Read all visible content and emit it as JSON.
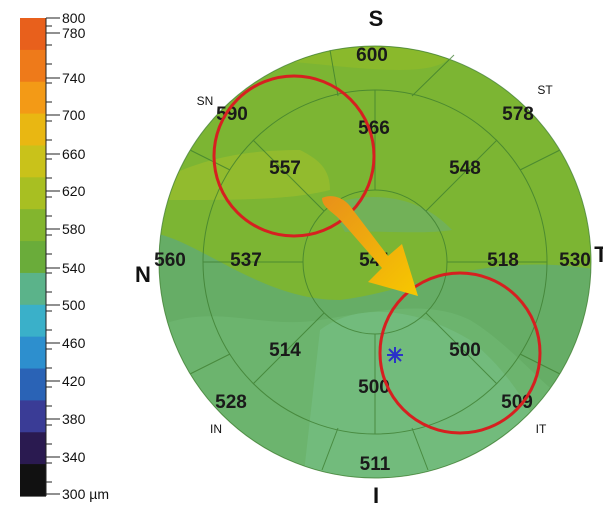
{
  "colorbar": {
    "ticks": [
      "800",
      "780",
      "740",
      "700",
      "660",
      "620",
      "580",
      "540",
      "500",
      "460",
      "420",
      "380",
      "340",
      "300 µm"
    ],
    "colors": [
      "#e8601c",
      "#ee7a1a",
      "#f39a16",
      "#e9b712",
      "#c9c21a",
      "#a8bf22",
      "#83b52e",
      "#6aac3a",
      "#5bb38a",
      "#3ab0c9",
      "#2d8fce",
      "#2a63b6",
      "#3a3c96",
      "#2a1a50",
      "#111111"
    ]
  },
  "map": {
    "cardinal": {
      "top": "S",
      "bottom": "I",
      "left": "N",
      "right": "T"
    },
    "quadrants": {
      "sn": "SN",
      "st": "ST",
      "in": "IN",
      "it": "IT"
    },
    "sectors": {
      "outer_top": "600",
      "outer_sn": "590",
      "outer_st": "578",
      "outer_nasal": "560",
      "outer_temporal": "530",
      "outer_in": "528",
      "outer_it": "509",
      "outer_bottom": "511",
      "mid_sup_n": "566",
      "mid_sn": "557",
      "mid_st": "548",
      "mid_nasal": "537",
      "mid_temporal": "518",
      "mid_in": "514",
      "mid_it": "500",
      "mid_inferior": "500",
      "center": "541"
    },
    "marker_icon": "asterisk-icon",
    "colors": {
      "superior": "#7db531",
      "inferior": "#64ab6b",
      "highlight_circle": "#d62020",
      "arrow": "#f0b400"
    }
  }
}
